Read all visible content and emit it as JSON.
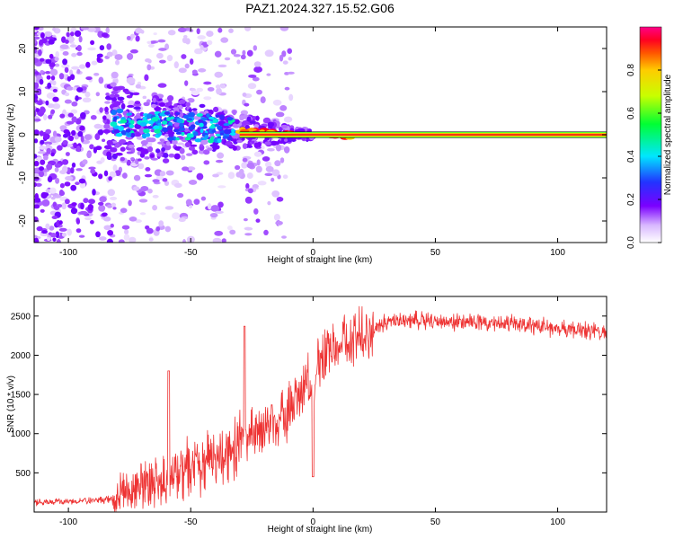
{
  "title": "PAZ1.2024.327.15.52.G06",
  "colors": {
    "snr_line": "#ee3333",
    "ridge": "#ee2222",
    "background": "#ffffff"
  },
  "chart_data": [
    {
      "type": "heatmap",
      "xlabel": "Height of straight line (km)",
      "ylabel": "Frequency (Hz)",
      "xlim": [
        -114,
        120
      ],
      "ylim": [
        -25,
        25
      ],
      "xticks": [
        -100,
        -50,
        0,
        50,
        100
      ],
      "yticks": [
        -20,
        -10,
        0,
        10,
        20
      ],
      "grid": false,
      "colorbar": {
        "label": "Normalized spectral amplitude",
        "range": [
          0,
          1
        ],
        "ticks": [
          "0.0",
          "0.2",
          "0.4",
          "0.6",
          "0.8"
        ],
        "colormap": "rainbow"
      },
      "ridge_frequency_hz": 0,
      "ridge_start_km": -30
    },
    {
      "type": "line",
      "xlabel": "Height of straight line (km)",
      "ylabel": "SNR (10 * v/v)",
      "xlim": [
        -114,
        120
      ],
      "ylim": [
        0,
        2750
      ],
      "xticks": [
        -100,
        -50,
        0,
        50,
        100
      ],
      "yticks": [
        500,
        1000,
        1500,
        2000,
        2500
      ],
      "grid": false,
      "profile": {
        "x": [
          -114,
          -85,
          -80,
          -70,
          -60,
          -50,
          -40,
          -35,
          -30,
          -25,
          -20,
          -15,
          -10,
          -5,
          -2,
          0,
          2,
          5,
          10,
          15,
          20,
          25,
          30,
          40,
          60,
          80,
          100,
          110,
          120
        ],
        "y": [
          120,
          150,
          200,
          350,
          450,
          550,
          650,
          700,
          900,
          1000,
          1050,
          1150,
          1300,
          1500,
          1650,
          1650,
          1850,
          1950,
          2100,
          2200,
          2300,
          2350,
          2420,
          2450,
          2430,
          2400,
          2350,
          2320,
          2300
        ]
      },
      "spikes": [
        {
          "x": -59,
          "y": 1800
        },
        {
          "x": -28,
          "y": 2370
        },
        {
          "x": 0,
          "y": 450
        }
      ]
    }
  ]
}
